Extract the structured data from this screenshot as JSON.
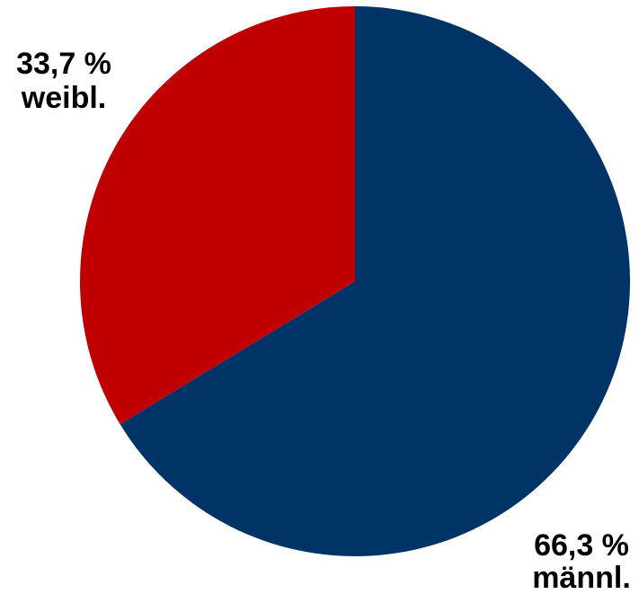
{
  "chart_data": {
    "type": "pie",
    "title": "",
    "start_angle_deg": 0,
    "direction": "clockwise",
    "legend": "none",
    "slices": [
      {
        "label": "männl.",
        "value": 66.3,
        "value_text": "66,3 %",
        "color": "#003366"
      },
      {
        "label": "weibl.",
        "value": 33.7,
        "value_text": "33,7 %",
        "color": "#C00000"
      }
    ]
  }
}
